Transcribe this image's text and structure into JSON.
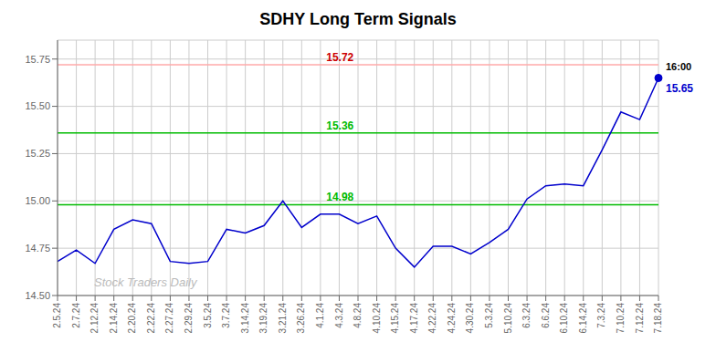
{
  "chart_data": {
    "type": "line",
    "title": "SDHY Long Term Signals",
    "categories": [
      "2.5.24",
      "2.7.24",
      "2.12.24",
      "2.14.24",
      "2.20.24",
      "2.22.24",
      "2.27.24",
      "2.29.24",
      "3.5.24",
      "3.7.24",
      "3.14.24",
      "3.19.24",
      "3.21.24",
      "3.26.24",
      "4.1.24",
      "4.3.24",
      "4.8.24",
      "4.10.24",
      "4.15.24",
      "4.17.24",
      "4.22.24",
      "4.24.24",
      "4.30.24",
      "5.3.24",
      "5.10.24",
      "6.3.24",
      "6.6.24",
      "6.10.24",
      "6.14.24",
      "7.3.24",
      "7.10.24",
      "7.12.24",
      "7.18.24"
    ],
    "values": [
      14.68,
      14.74,
      14.67,
      14.85,
      14.9,
      14.88,
      14.68,
      14.67,
      14.68,
      14.85,
      14.83,
      14.87,
      15.0,
      14.86,
      14.93,
      14.93,
      14.88,
      14.92,
      14.75,
      14.65,
      14.76,
      14.76,
      14.72,
      14.78,
      14.85,
      15.01,
      15.08,
      15.09,
      15.08,
      15.27,
      15.47,
      15.43,
      15.65
    ],
    "color": "#0000cc",
    "ylim": [
      14.5,
      15.85
    ],
    "yticks": [
      {
        "value": 14.5,
        "label": "14.50"
      },
      {
        "value": 14.75,
        "label": "14.75"
      },
      {
        "value": 15.0,
        "label": "15.00"
      },
      {
        "value": 15.25,
        "label": "15.25"
      },
      {
        "value": 15.5,
        "label": "15.50"
      },
      {
        "value": 15.75,
        "label": "15.75"
      }
    ],
    "grid": true,
    "hlines": [
      {
        "value": 15.72,
        "label": "15.72",
        "color": "#ffaaaa",
        "label_color": "#cc0000"
      },
      {
        "value": 15.36,
        "label": "15.36",
        "color": "#00bb00",
        "label_color": "#00bb00"
      },
      {
        "value": 14.98,
        "label": "14.98",
        "color": "#00bb00",
        "label_color": "#00bb00"
      }
    ],
    "last_point": {
      "value": 15.65,
      "label": "15.65",
      "time_label": "16:00",
      "color": "#0000cc"
    },
    "watermark": "Stock Traders Daily",
    "watermark_color": "#bbbbbb"
  }
}
